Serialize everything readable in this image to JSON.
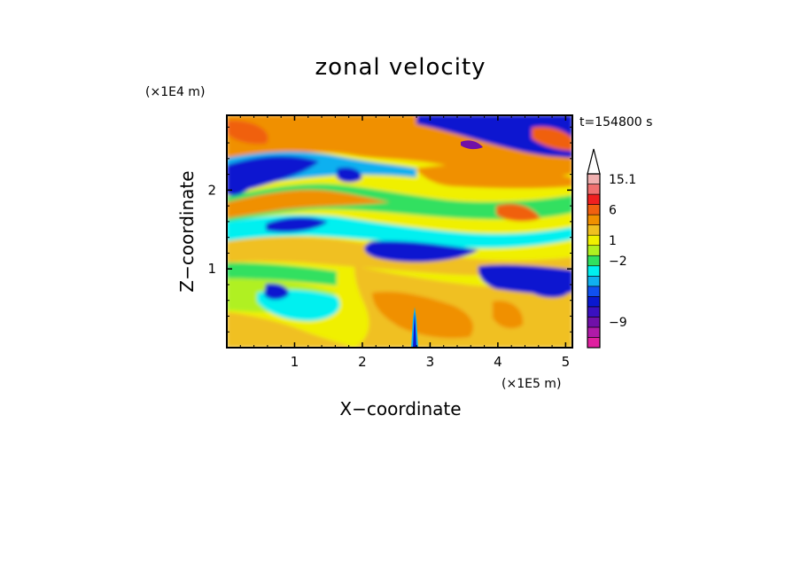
{
  "chart_data": {
    "type": "heatmap",
    "title": "zonal velocity",
    "time_label": "t=154800 s",
    "xlabel": "X−coordinate",
    "ylabel": "Z−coordinate",
    "x_unit": "(×1E5 m)",
    "y_unit": "(×1E4 m)",
    "xlim": [
      0,
      5.1
    ],
    "ylim": [
      0,
      2.95
    ],
    "x_ticks": [
      {
        "value": 1,
        "label": "1"
      },
      {
        "value": 2,
        "label": "2"
      },
      {
        "value": 3,
        "label": "3"
      },
      {
        "value": 4,
        "label": "4"
      },
      {
        "value": 5,
        "label": "5"
      }
    ],
    "y_ticks": [
      {
        "value": 1,
        "label": "1"
      },
      {
        "value": 2,
        "label": "2"
      }
    ],
    "colorbar": {
      "levels": [
        {
          "color": "#e020a0"
        },
        {
          "color": "#b01aa8"
        },
        {
          "color": "#7010a8"
        },
        {
          "color": "#3a10c0"
        },
        {
          "color": "#0a18d0"
        },
        {
          "color": "#1050f0"
        },
        {
          "color": "#10b0f0"
        },
        {
          "color": "#00f0f0"
        },
        {
          "color": "#30e060"
        },
        {
          "color": "#b0f020"
        },
        {
          "color": "#f0f000"
        },
        {
          "color": "#f0c020"
        },
        {
          "color": "#f09000"
        },
        {
          "color": "#f06010"
        },
        {
          "color": "#f02020"
        },
        {
          "color": "#f07070"
        },
        {
          "color": "#f0b0b0"
        }
      ],
      "tick_labels": [
        {
          "label": "15.1",
          "level": 16.5
        },
        {
          "label": "6",
          "level": 13.5
        },
        {
          "label": "1",
          "level": 10.5
        },
        {
          "label": "−2",
          "level": 8.5
        },
        {
          "label": "−9",
          "level": 2.5
        }
      ],
      "extend": "max"
    }
  }
}
